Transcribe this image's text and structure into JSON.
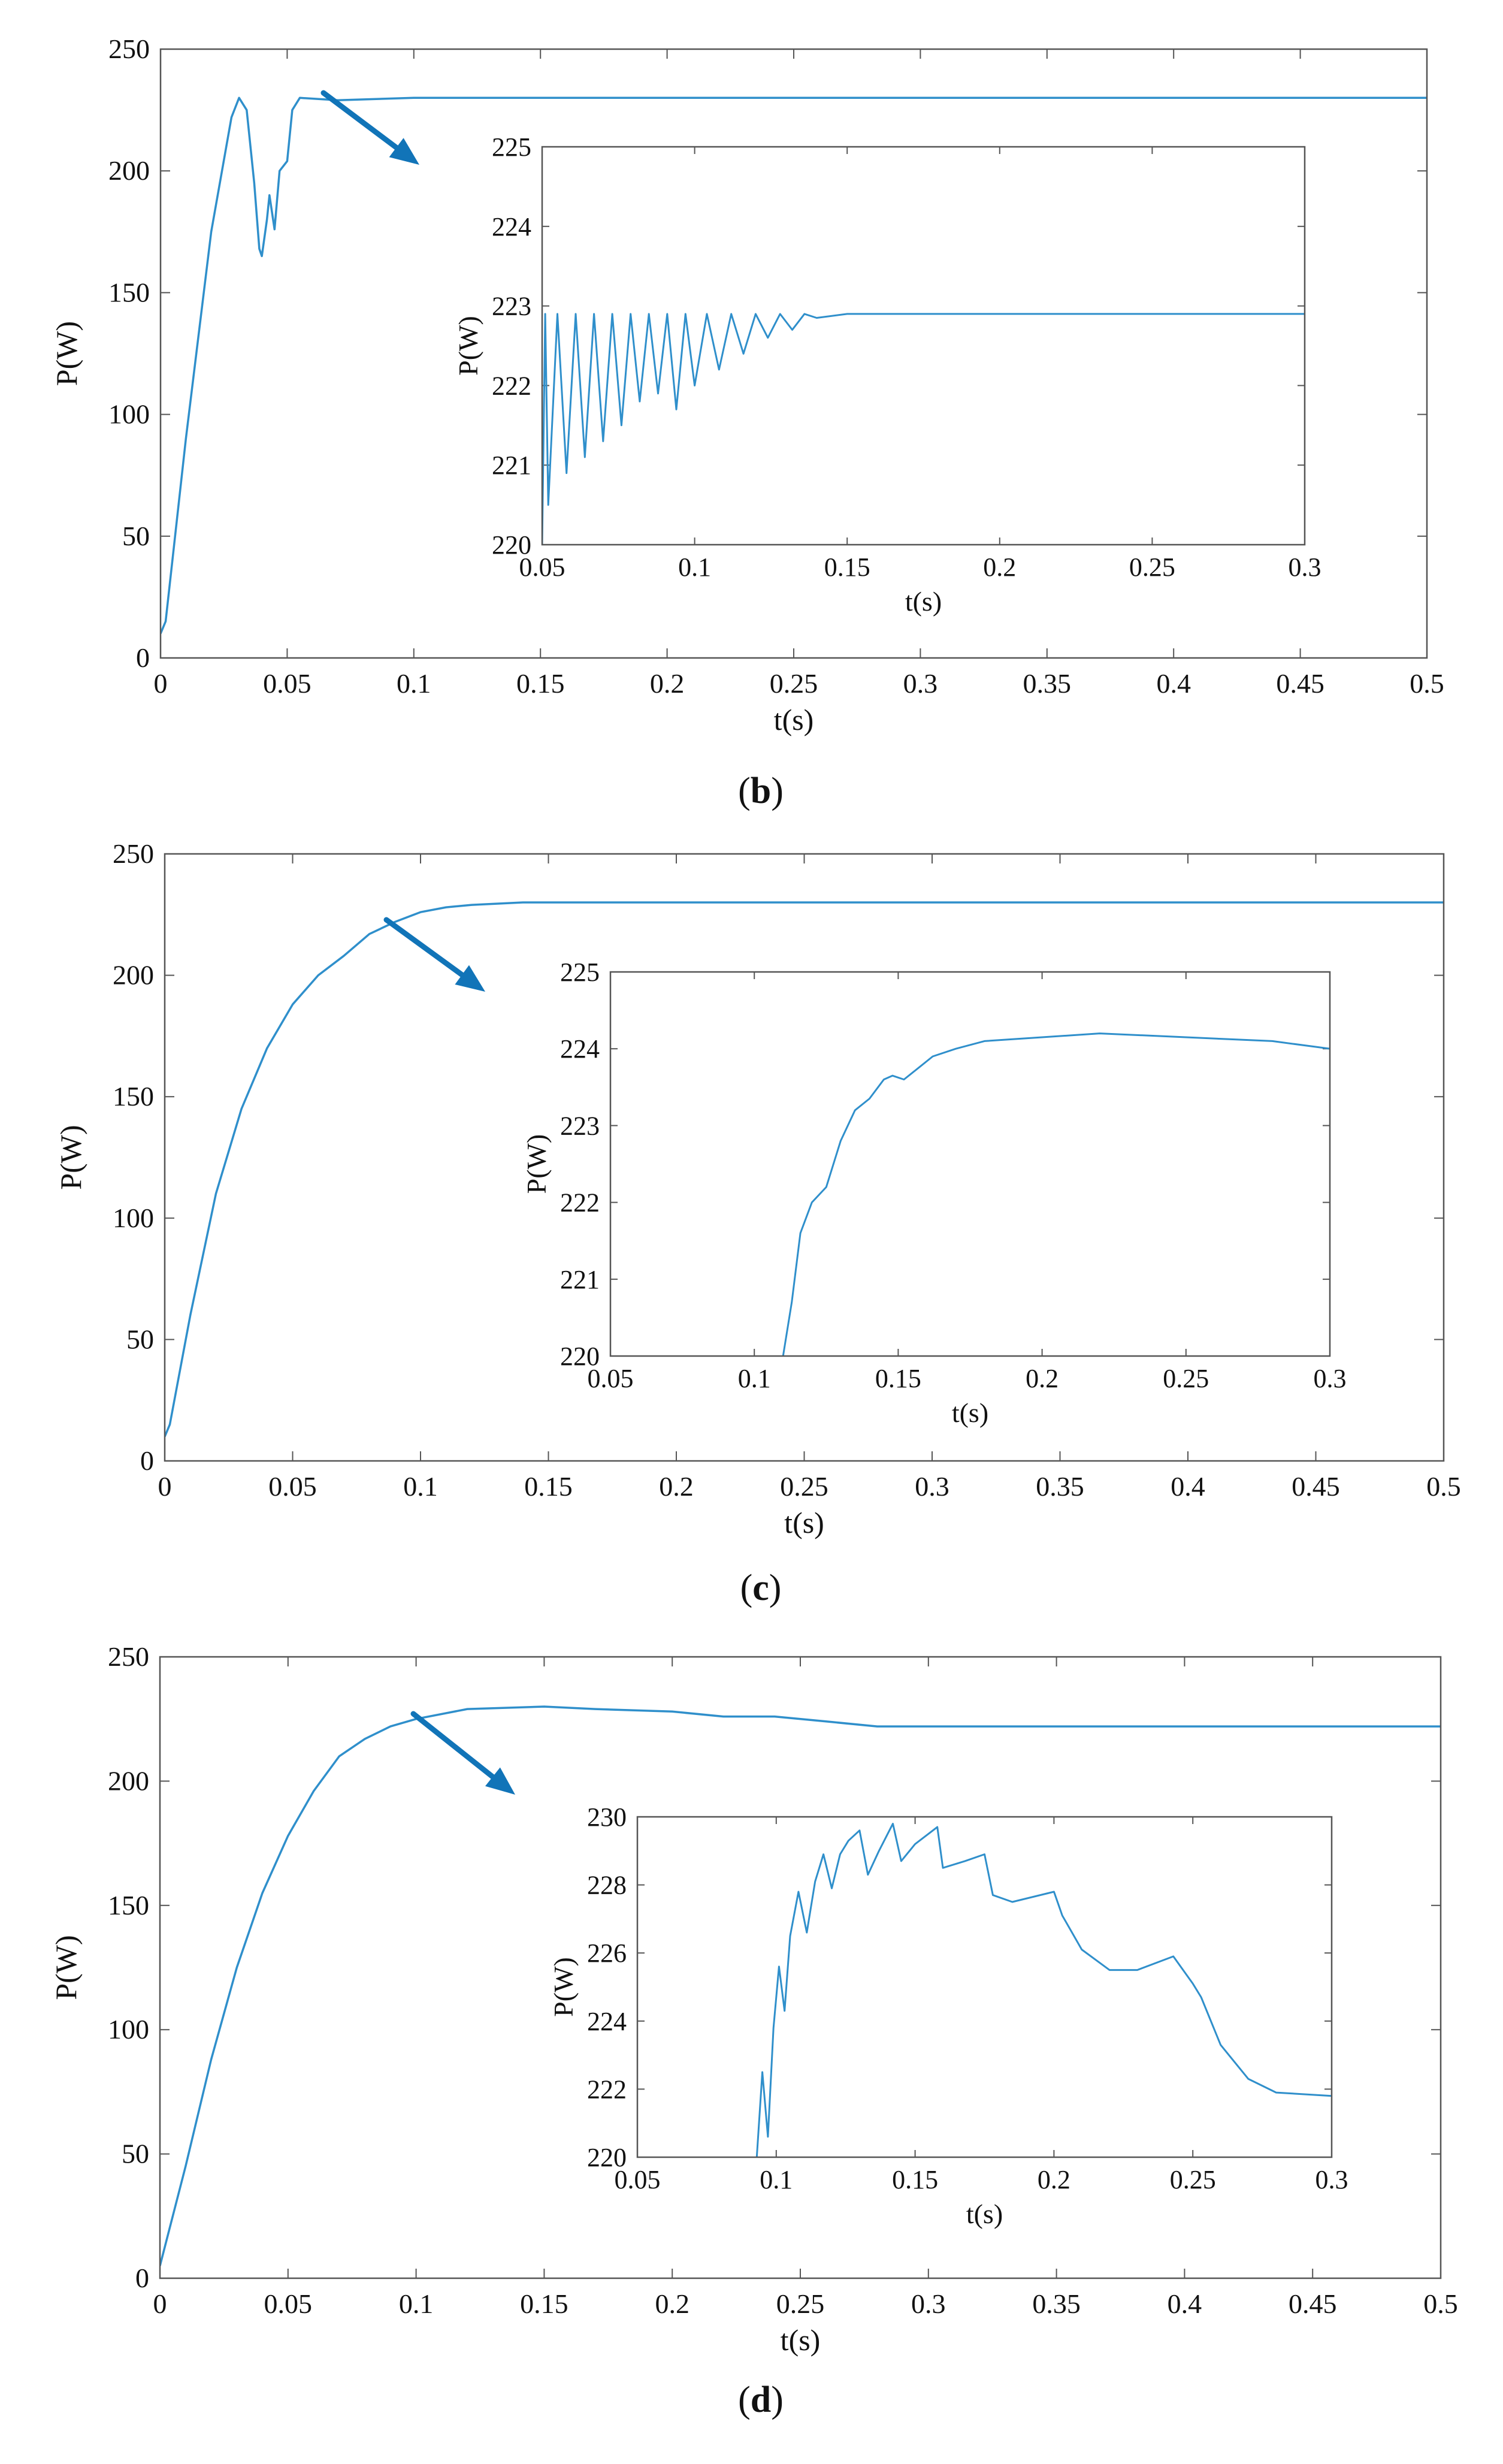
{
  "figure": {
    "colors": {
      "series": "#2f8fcb",
      "arrow": "#1174b8",
      "axis": "#555555",
      "text": "#111111"
    }
  },
  "chart_data": [
    {
      "type": "line",
      "panel_caption": "b",
      "xlabel": "t(s)",
      "ylabel": "P(W)",
      "xlim": [
        0,
        0.5
      ],
      "ylim": [
        0,
        250
      ],
      "xticks": [
        "0",
        "0.05",
        "0.1",
        "0.15",
        "0.2",
        "0.25",
        "0.3",
        "0.35",
        "0.4",
        "0.45",
        "0.5"
      ],
      "yticks": [
        "0",
        "50",
        "100",
        "150",
        "200",
        "250"
      ],
      "grid": false,
      "series": [
        {
          "x": [
            0,
            0.002,
            0.01,
            0.02,
            0.028,
            0.031,
            0.034,
            0.037,
            0.039,
            0.04,
            0.042,
            0.043,
            0.045,
            0.047,
            0.05,
            0.052,
            0.055,
            0.07,
            0.1,
            0.15,
            0.2,
            0.3,
            0.4,
            0.5
          ],
          "y": [
            10,
            15,
            90,
            175,
            222,
            230,
            225,
            195,
            168,
            165,
            180,
            190,
            176,
            200,
            204,
            225,
            230,
            229,
            230,
            230,
            230,
            230,
            230,
            230
          ]
        }
      ],
      "annotation": "arrow",
      "inset": {
        "xlabel": "t(s)",
        "ylabel": "P(W)",
        "xlim": [
          0.05,
          0.3
        ],
        "ylim": [
          220,
          225
        ],
        "xticks": [
          "0.05",
          "0.1",
          "0.15",
          "0.2",
          "0.25",
          "0.3"
        ],
        "yticks": [
          "220",
          "221",
          "222",
          "223",
          "224",
          "225"
        ],
        "series": [
          {
            "x": [
              0.05,
              0.051,
              0.052,
              0.055,
              0.058,
              0.061,
              0.064,
              0.067,
              0.07,
              0.073,
              0.076,
              0.079,
              0.082,
              0.085,
              0.088,
              0.091,
              0.094,
              0.097,
              0.1,
              0.104,
              0.108,
              0.112,
              0.116,
              0.12,
              0.124,
              0.128,
              0.132,
              0.136,
              0.14,
              0.15,
              0.2,
              0.25,
              0.3
            ],
            "y": [
              220.0,
              222.9,
              220.5,
              222.9,
              220.9,
              222.9,
              221.1,
              222.9,
              221.3,
              222.9,
              221.5,
              222.9,
              221.8,
              222.9,
              221.9,
              222.9,
              221.7,
              222.9,
              222.0,
              222.9,
              222.2,
              222.9,
              222.4,
              222.9,
              222.6,
              222.9,
              222.7,
              222.9,
              222.85,
              222.9,
              222.9,
              222.9,
              222.9
            ]
          }
        ]
      }
    },
    {
      "type": "line",
      "panel_caption": "c",
      "xlabel": "t(s)",
      "ylabel": "P(W)",
      "xlim": [
        0,
        0.5
      ],
      "ylim": [
        0,
        250
      ],
      "xticks": [
        "0",
        "0.05",
        "0.1",
        "0.15",
        "0.2",
        "0.25",
        "0.3",
        "0.35",
        "0.4",
        "0.45",
        "0.5"
      ],
      "yticks": [
        "0",
        "50",
        "100",
        "150",
        "200",
        "250"
      ],
      "grid": false,
      "series": [
        {
          "x": [
            0,
            0.002,
            0.01,
            0.02,
            0.03,
            0.04,
            0.05,
            0.06,
            0.07,
            0.08,
            0.09,
            0.1,
            0.11,
            0.12,
            0.14,
            0.2,
            0.3,
            0.4,
            0.5
          ],
          "y": [
            10,
            15,
            60,
            110,
            145,
            170,
            188,
            200,
            208,
            217,
            222,
            226,
            228,
            229,
            230,
            230,
            230,
            230,
            230
          ]
        }
      ],
      "annotation": "arrow",
      "inset": {
        "xlabel": "t(s)",
        "ylabel": "P(W)",
        "xlim": [
          0.05,
          0.3
        ],
        "ylim": [
          220,
          225
        ],
        "xticks": [
          "0.05",
          "0.1",
          "0.15",
          "0.2",
          "0.25",
          "0.3"
        ],
        "yticks": [
          "220",
          "221",
          "222",
          "223",
          "224",
          "225"
        ],
        "series": [
          {
            "x": [
              0.11,
              0.113,
              0.116,
              0.12,
              0.125,
              0.13,
              0.135,
              0.14,
              0.145,
              0.148,
              0.152,
              0.157,
              0.162,
              0.17,
              0.18,
              0.2,
              0.22,
              0.25,
              0.28,
              0.3
            ],
            "y": [
              220.0,
              220.7,
              221.6,
              222.0,
              222.2,
              222.8,
              223.2,
              223.35,
              223.6,
              223.65,
              223.6,
              223.75,
              223.9,
              224.0,
              224.1,
              224.15,
              224.2,
              224.15,
              224.1,
              224.0
            ]
          }
        ]
      }
    },
    {
      "type": "line",
      "panel_caption": "d",
      "xlabel": "t(s)",
      "ylabel": "P(W)",
      "xlim": [
        0,
        0.5
      ],
      "ylim": [
        0,
        250
      ],
      "xticks": [
        "0",
        "0.05",
        "0.1",
        "0.15",
        "0.2",
        "0.25",
        "0.3",
        "0.35",
        "0.4",
        "0.45",
        "0.5"
      ],
      "yticks": [
        "0",
        "50",
        "100",
        "150",
        "200",
        "250"
      ],
      "grid": false,
      "series": [
        {
          "x": [
            0,
            0.01,
            0.02,
            0.03,
            0.04,
            0.05,
            0.06,
            0.07,
            0.08,
            0.09,
            0.1,
            0.12,
            0.15,
            0.17,
            0.2,
            0.22,
            0.24,
            0.26,
            0.28,
            0.3,
            0.4,
            0.5
          ],
          "y": [
            5,
            45,
            88,
            125,
            155,
            178,
            196,
            210,
            217,
            222,
            225,
            229,
            230,
            229,
            228,
            226,
            226,
            224,
            222,
            222,
            222,
            222
          ]
        }
      ],
      "annotation": "arrow",
      "inset": {
        "xlabel": "t(s)",
        "ylabel": "P(W)",
        "xlim": [
          0.05,
          0.3
        ],
        "ylim": [
          220,
          230
        ],
        "xticks": [
          "0.05",
          "0.1",
          "0.15",
          "0.2",
          "0.25",
          "0.3"
        ],
        "yticks": [
          "220",
          "222",
          "224",
          "226",
          "228",
          "230"
        ],
        "series": [
          {
            "x": [
              0.093,
              0.095,
              0.097,
              0.099,
              0.101,
              0.103,
              0.105,
              0.108,
              0.111,
              0.114,
              0.117,
              0.12,
              0.123,
              0.126,
              0.13,
              0.133,
              0.137,
              0.142,
              0.145,
              0.15,
              0.158,
              0.16,
              0.168,
              0.175,
              0.178,
              0.185,
              0.2,
              0.203,
              0.21,
              0.22,
              0.23,
              0.243,
              0.25,
              0.253,
              0.26,
              0.27,
              0.28,
              0.3
            ],
            "y": [
              220.0,
              222.5,
              220.6,
              223.8,
              225.6,
              224.3,
              226.5,
              227.8,
              226.6,
              228.1,
              228.9,
              227.9,
              228.9,
              229.3,
              229.6,
              228.3,
              229.0,
              229.8,
              228.7,
              229.2,
              229.7,
              228.5,
              228.7,
              228.9,
              227.7,
              227.5,
              227.8,
              227.1,
              226.1,
              225.5,
              225.5,
              225.9,
              225.1,
              224.7,
              223.3,
              222.3,
              221.9,
              221.8
            ]
          }
        ]
      }
    }
  ]
}
